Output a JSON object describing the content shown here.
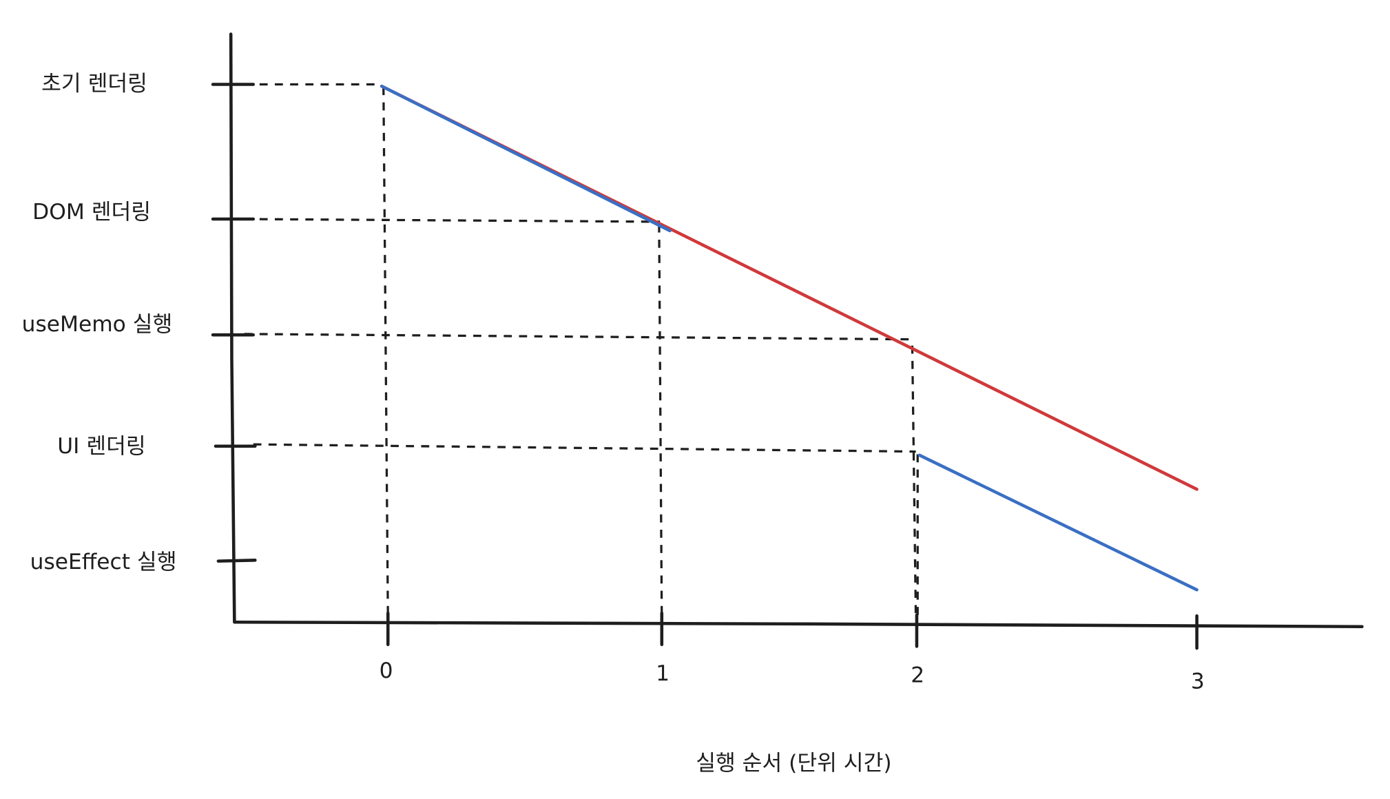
{
  "y_labels": [
    "초기 렌더링",
    "DOM 렌더링",
    "useMemo 실행",
    "UI 렌더링",
    "useEffect 실행"
  ],
  "x_labels": [
    "0",
    "1",
    "2",
    "3"
  ],
  "x_axis_title": "실행 순서 (단위 시간)"
}
